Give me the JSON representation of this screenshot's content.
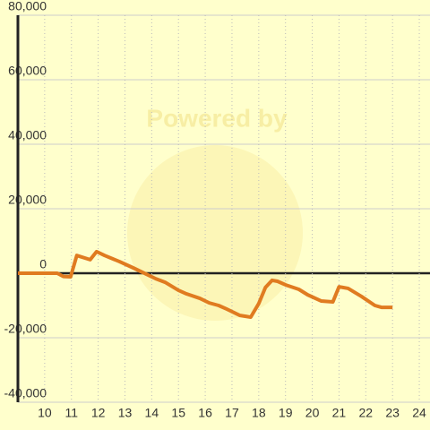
{
  "chart_data": {
    "type": "line",
    "watermark": "Powered by",
    "xlim": [
      9,
      24.4
    ],
    "xticks": [
      10,
      11,
      12,
      13,
      14,
      15,
      16,
      17,
      18,
      19,
      20,
      21,
      22,
      23,
      24
    ],
    "ylim": [
      -40000,
      80000
    ],
    "yticks": [
      {
        "value": -40000,
        "label": "-40,000"
      },
      {
        "value": -20000,
        "label": "-20,000"
      },
      0,
      {
        "value": 20000,
        "label": "20,000"
      },
      {
        "value": 40000,
        "label": "40,000"
      },
      {
        "value": 60000,
        "label": "60,000"
      },
      {
        "value": 80000,
        "label": "80,000"
      }
    ],
    "grid": true,
    "series": [
      {
        "color": "#e07b20",
        "x": [
          9,
          10.47,
          10.7,
          10.97,
          11.2,
          11.7,
          11.94,
          12.24,
          12.8,
          13.3,
          13.8,
          14.15,
          14.5,
          15.0,
          15.3,
          15.8,
          16.15,
          16.5,
          16.8,
          17.3,
          17.7,
          18.0,
          18.25,
          18.5,
          18.7,
          19.0,
          19.5,
          19.83,
          20.33,
          20.77,
          21.0,
          21.34,
          21.84,
          22.34,
          22.6,
          23.0
        ],
        "values": [
          0,
          0,
          -1000,
          -1100,
          5500,
          4200,
          6700,
          5500,
          3600,
          1700,
          -300,
          -1700,
          -2800,
          -5300,
          -6400,
          -7800,
          -9200,
          -10000,
          -11100,
          -13100,
          -13600,
          -9400,
          -4400,
          -2200,
          -2500,
          -3600,
          -5000,
          -6700,
          -8600,
          -8900,
          -4200,
          -4700,
          -7200,
          -10000,
          -10600,
          -10600
        ]
      }
    ]
  }
}
